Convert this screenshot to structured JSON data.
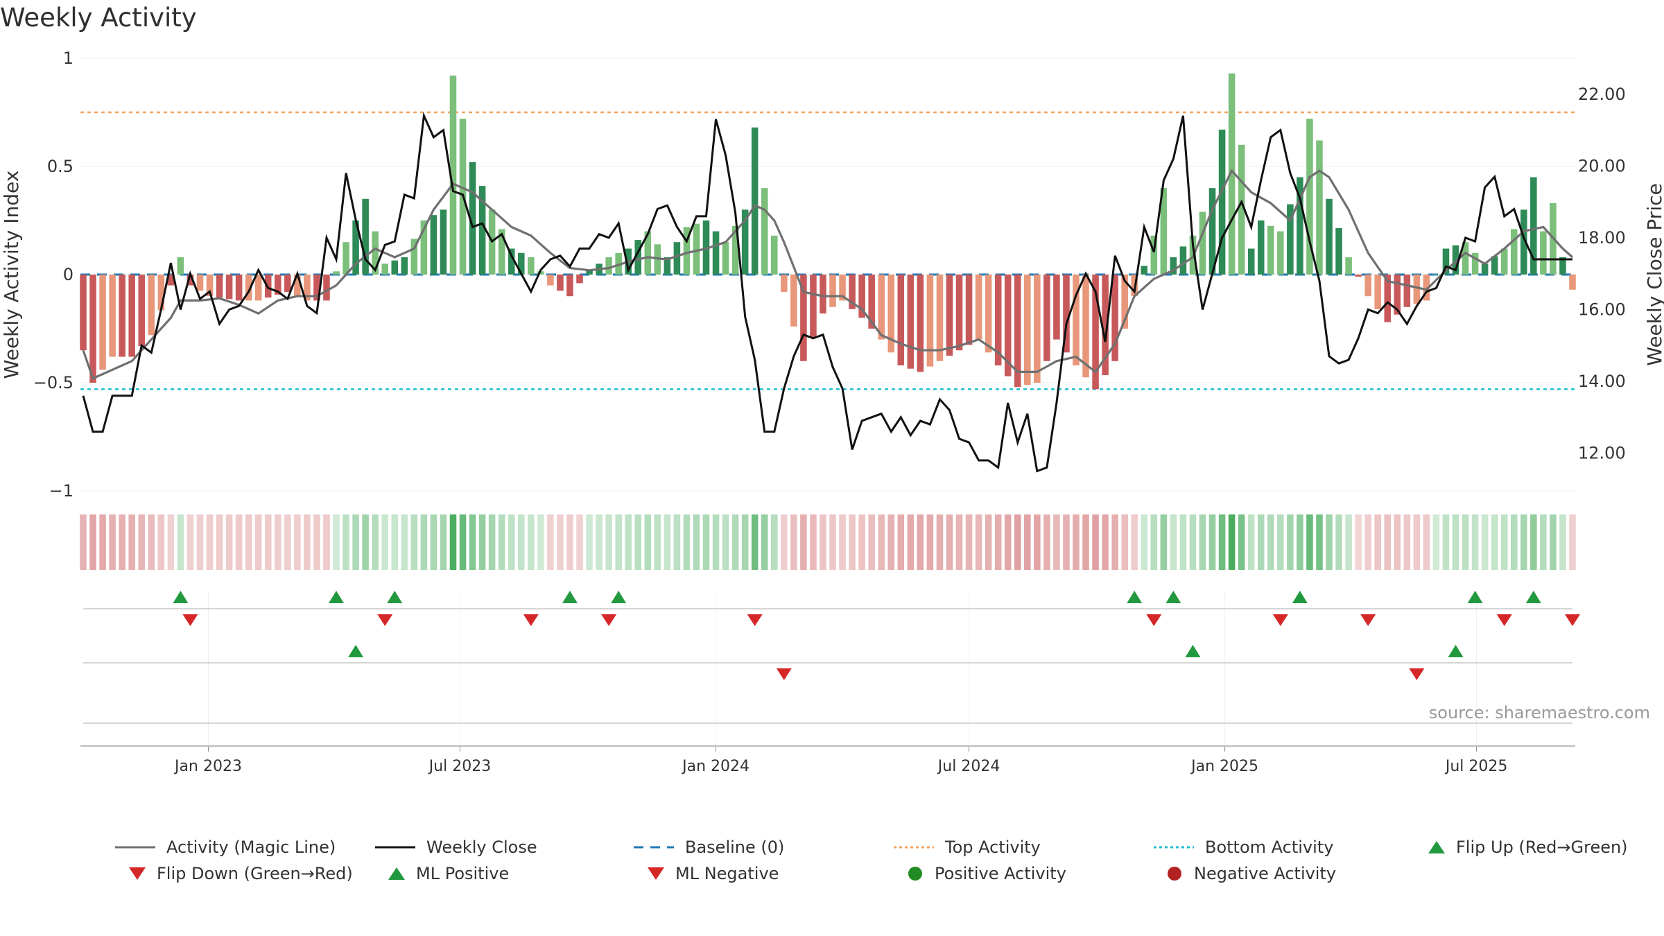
{
  "title": "Weekly Activity",
  "source": "source: sharemaestro.com",
  "legend": {
    "magic_line": "Activity (Magic Line)",
    "weekly_close": "Weekly Close",
    "baseline": "Baseline (0)",
    "top_activity": "Top Activity",
    "bottom_activity": "Bottom Activity",
    "flip_up": "Flip Up (Red→Green)",
    "flip_down": "Flip Down (Green→Red)",
    "ml_positive": "ML Positive",
    "ml_negative": "ML Negative",
    "positive_activity": "Positive Activity",
    "negative_activity": "Negative Activity"
  },
  "colors": {
    "pos_strong": "#2e8b57",
    "pos_light": "#7bbf7b",
    "neg_strong": "#c8595b",
    "neg_light": "#e8977a",
    "magic_line": "#707070",
    "close": "#111111",
    "baseline": "#1f77b4",
    "top": "#f0a35e",
    "bottom": "#17becf",
    "up_marker": "#22993f",
    "down_marker": "#d62728",
    "pos_dot": "#228b22",
    "neg_dot": "#b22222"
  },
  "chart_data": {
    "type": "bar+line",
    "title": "Weekly Activity",
    "ylabel": "Weekly Activity Index",
    "y2label": "Weekly Close Price",
    "ylim": [
      -1,
      1
    ],
    "y2lim": [
      10.95,
      23.0
    ],
    "yticks": [
      1,
      0.5,
      0,
      -0.5,
      -1
    ],
    "ytick_labels": [
      "1",
      "0.5",
      "0",
      "−0.5",
      "−1"
    ],
    "y2ticks": [
      22,
      20,
      18,
      16,
      14,
      12
    ],
    "y2tick_labels": [
      "22.00",
      "20.00",
      "18.00",
      "16.00",
      "14.00",
      "12.00"
    ],
    "x_start_date": "2022-10-03",
    "x_end_date": "2025-09-08",
    "xtick_dates": [
      "2023-01-01",
      "2023-07-01",
      "2024-01-01",
      "2024-07-01",
      "2025-01-01",
      "2025-07-01"
    ],
    "xtick_labels": [
      "Jan 2023",
      "Jul 2023",
      "Jan 2024",
      "Jul 2024",
      "Jan 2025",
      "Jul 2025"
    ],
    "top_activity": 0.75,
    "bottom_activity": -0.53,
    "baseline": 0,
    "activity_anchors": [
      [
        0,
        -0.35
      ],
      [
        1,
        -0.5
      ],
      [
        3,
        -0.38
      ],
      [
        5,
        -0.38
      ],
      [
        7,
        -0.28
      ],
      [
        9,
        -0.05
      ],
      [
        10,
        0.08
      ],
      [
        11,
        -0.05
      ],
      [
        13,
        -0.1
      ],
      [
        16,
        -0.12
      ],
      [
        18,
        -0.12
      ],
      [
        21,
        -0.08
      ],
      [
        23,
        -0.12
      ],
      [
        25,
        -0.12
      ],
      [
        27,
        0.15
      ],
      [
        29,
        0.35
      ],
      [
        31,
        0.05
      ],
      [
        33,
        0.08
      ],
      [
        35,
        0.25
      ],
      [
        37,
        0.3
      ],
      [
        38,
        0.92
      ],
      [
        40,
        0.52
      ],
      [
        42,
        0.3
      ],
      [
        44,
        0.12
      ],
      [
        46,
        0.08
      ],
      [
        48,
        -0.05
      ],
      [
        50,
        -0.1
      ],
      [
        52,
        0.02
      ],
      [
        54,
        0.08
      ],
      [
        56,
        0.12
      ],
      [
        58,
        0.2
      ],
      [
        60,
        0.08
      ],
      [
        62,
        0.22
      ],
      [
        64,
        0.25
      ],
      [
        66,
        0.15
      ],
      [
        68,
        0.3
      ],
      [
        69,
        0.68
      ],
      [
        70,
        0.4
      ],
      [
        71,
        0.18
      ],
      [
        72,
        -0.08
      ],
      [
        74,
        -0.4
      ],
      [
        76,
        -0.18
      ],
      [
        78,
        -0.12
      ],
      [
        80,
        -0.2
      ],
      [
        82,
        -0.3
      ],
      [
        84,
        -0.42
      ],
      [
        86,
        -0.45
      ],
      [
        88,
        -0.4
      ],
      [
        90,
        -0.35
      ],
      [
        92,
        -0.3
      ],
      [
        94,
        -0.42
      ],
      [
        96,
        -0.52
      ],
      [
        98,
        -0.5
      ],
      [
        100,
        -0.3
      ],
      [
        102,
        -0.42
      ],
      [
        104,
        -0.53
      ],
      [
        106,
        -0.4
      ],
      [
        108,
        -0.1
      ],
      [
        110,
        0.18
      ],
      [
        111,
        0.4
      ],
      [
        112,
        0.08
      ],
      [
        114,
        0.18
      ],
      [
        116,
        0.4
      ],
      [
        117,
        0.67
      ],
      [
        118,
        0.93
      ],
      [
        119,
        0.6
      ],
      [
        120,
        0.12
      ],
      [
        121,
        0.25
      ],
      [
        123,
        0.2
      ],
      [
        125,
        0.45
      ],
      [
        126,
        0.72
      ],
      [
        127,
        0.62
      ],
      [
        128,
        0.35
      ],
      [
        130,
        0.08
      ],
      [
        132,
        -0.1
      ],
      [
        134,
        -0.22
      ],
      [
        136,
        -0.15
      ],
      [
        138,
        -0.12
      ],
      [
        140,
        0.12
      ],
      [
        142,
        0.15
      ],
      [
        144,
        0.05
      ],
      [
        146,
        0.12
      ],
      [
        148,
        0.3
      ],
      [
        149,
        0.45
      ],
      [
        150,
        0.2
      ],
      [
        151,
        0.33
      ],
      [
        152,
        0.08
      ],
      [
        153,
        -0.07
      ]
    ],
    "magic_anchors": [
      [
        0,
        -0.35
      ],
      [
        1,
        -0.48
      ],
      [
        3,
        -0.44
      ],
      [
        5,
        -0.4
      ],
      [
        7,
        -0.3
      ],
      [
        9,
        -0.2
      ],
      [
        10,
        -0.12
      ],
      [
        12,
        -0.12
      ],
      [
        14,
        -0.11
      ],
      [
        16,
        -0.14
      ],
      [
        18,
        -0.18
      ],
      [
        20,
        -0.12
      ],
      [
        22,
        -0.1
      ],
      [
        24,
        -0.1
      ],
      [
        26,
        -0.05
      ],
      [
        28,
        0.05
      ],
      [
        30,
        0.12
      ],
      [
        32,
        0.08
      ],
      [
        34,
        0.12
      ],
      [
        36,
        0.3
      ],
      [
        38,
        0.42
      ],
      [
        40,
        0.38
      ],
      [
        42,
        0.3
      ],
      [
        44,
        0.22
      ],
      [
        46,
        0.18
      ],
      [
        48,
        0.1
      ],
      [
        50,
        0.03
      ],
      [
        52,
        0.02
      ],
      [
        54,
        0.03
      ],
      [
        56,
        0.06
      ],
      [
        58,
        0.08
      ],
      [
        60,
        0.07
      ],
      [
        62,
        0.1
      ],
      [
        64,
        0.12
      ],
      [
        66,
        0.15
      ],
      [
        68,
        0.25
      ],
      [
        69,
        0.32
      ],
      [
        70,
        0.3
      ],
      [
        71,
        0.25
      ],
      [
        72,
        0.15
      ],
      [
        74,
        -0.08
      ],
      [
        76,
        -0.1
      ],
      [
        78,
        -0.1
      ],
      [
        80,
        -0.16
      ],
      [
        82,
        -0.28
      ],
      [
        84,
        -0.32
      ],
      [
        86,
        -0.35
      ],
      [
        88,
        -0.35
      ],
      [
        90,
        -0.33
      ],
      [
        92,
        -0.3
      ],
      [
        94,
        -0.36
      ],
      [
        96,
        -0.45
      ],
      [
        98,
        -0.45
      ],
      [
        100,
        -0.4
      ],
      [
        102,
        -0.38
      ],
      [
        104,
        -0.45
      ],
      [
        106,
        -0.32
      ],
      [
        108,
        -0.1
      ],
      [
        110,
        -0.02
      ],
      [
        112,
        0.02
      ],
      [
        114,
        0.08
      ],
      [
        116,
        0.3
      ],
      [
        118,
        0.48
      ],
      [
        120,
        0.38
      ],
      [
        122,
        0.33
      ],
      [
        124,
        0.25
      ],
      [
        126,
        0.45
      ],
      [
        127,
        0.48
      ],
      [
        128,
        0.45
      ],
      [
        130,
        0.3
      ],
      [
        132,
        0.1
      ],
      [
        134,
        -0.03
      ],
      [
        136,
        -0.05
      ],
      [
        138,
        -0.07
      ],
      [
        140,
        0.02
      ],
      [
        142,
        0.1
      ],
      [
        144,
        0.05
      ],
      [
        146,
        0.12
      ],
      [
        148,
        0.2
      ],
      [
        150,
        0.22
      ],
      [
        152,
        0.12
      ],
      [
        153,
        0.08
      ]
    ],
    "close_anchors": [
      [
        0,
        13.6
      ],
      [
        1,
        12.6
      ],
      [
        2,
        12.6
      ],
      [
        3,
        13.6
      ],
      [
        5,
        13.6
      ],
      [
        6,
        15.0
      ],
      [
        7,
        14.8
      ],
      [
        8,
        16.0
      ],
      [
        9,
        17.3
      ],
      [
        10,
        16.0
      ],
      [
        11,
        17.0
      ],
      [
        12,
        16.3
      ],
      [
        13,
        16.5
      ],
      [
        14,
        15.6
      ],
      [
        15,
        16.0
      ],
      [
        16,
        16.1
      ],
      [
        17,
        16.5
      ],
      [
        18,
        17.1
      ],
      [
        19,
        16.6
      ],
      [
        20,
        16.5
      ],
      [
        21,
        16.3
      ],
      [
        22,
        17.0
      ],
      [
        23,
        16.1
      ],
      [
        24,
        15.9
      ],
      [
        25,
        18.0
      ],
      [
        26,
        17.4
      ],
      [
        27,
        19.8
      ],
      [
        28,
        18.5
      ],
      [
        29,
        17.4
      ],
      [
        30,
        17.1
      ],
      [
        31,
        17.8
      ],
      [
        32,
        17.9
      ],
      [
        33,
        19.2
      ],
      [
        34,
        19.1
      ],
      [
        35,
        21.4
      ],
      [
        36,
        20.8
      ],
      [
        37,
        21.0
      ],
      [
        38,
        19.3
      ],
      [
        39,
        19.2
      ],
      [
        40,
        18.3
      ],
      [
        41,
        18.4
      ],
      [
        42,
        17.9
      ],
      [
        43,
        18.1
      ],
      [
        44,
        17.5
      ],
      [
        45,
        17.0
      ],
      [
        46,
        16.5
      ],
      [
        47,
        17.1
      ],
      [
        48,
        17.4
      ],
      [
        49,
        17.5
      ],
      [
        50,
        17.2
      ],
      [
        51,
        17.7
      ],
      [
        52,
        17.7
      ],
      [
        53,
        18.1
      ],
      [
        54,
        18.0
      ],
      [
        55,
        18.4
      ],
      [
        56,
        17.1
      ],
      [
        57,
        17.6
      ],
      [
        58,
        18.1
      ],
      [
        59,
        18.8
      ],
      [
        60,
        18.9
      ],
      [
        61,
        18.3
      ],
      [
        62,
        17.9
      ],
      [
        63,
        18.6
      ],
      [
        64,
        18.6
      ],
      [
        65,
        21.3
      ],
      [
        66,
        20.3
      ],
      [
        67,
        18.7
      ],
      [
        68,
        15.8
      ],
      [
        69,
        14.6
      ],
      [
        70,
        12.6
      ],
      [
        71,
        12.6
      ],
      [
        72,
        13.8
      ],
      [
        73,
        14.7
      ],
      [
        74,
        15.3
      ],
      [
        75,
        15.2
      ],
      [
        76,
        15.3
      ],
      [
        77,
        14.4
      ],
      [
        78,
        13.8
      ],
      [
        79,
        12.1
      ],
      [
        80,
        12.9
      ],
      [
        81,
        13.0
      ],
      [
        82,
        13.1
      ],
      [
        83,
        12.6
      ],
      [
        84,
        13.0
      ],
      [
        85,
        12.5
      ],
      [
        86,
        12.9
      ],
      [
        87,
        12.8
      ],
      [
        88,
        13.5
      ],
      [
        89,
        13.2
      ],
      [
        90,
        12.4
      ],
      [
        91,
        12.3
      ],
      [
        92,
        11.8
      ],
      [
        93,
        11.8
      ],
      [
        94,
        11.6
      ],
      [
        95,
        13.4
      ],
      [
        96,
        12.3
      ],
      [
        97,
        13.1
      ],
      [
        98,
        11.5
      ],
      [
        99,
        11.6
      ],
      [
        100,
        13.4
      ],
      [
        101,
        15.6
      ],
      [
        102,
        16.4
      ],
      [
        103,
        17.0
      ],
      [
        104,
        16.5
      ],
      [
        105,
        15.1
      ],
      [
        106,
        17.5
      ],
      [
        107,
        16.8
      ],
      [
        108,
        16.5
      ],
      [
        109,
        18.3
      ],
      [
        110,
        17.6
      ],
      [
        111,
        19.6
      ],
      [
        112,
        20.2
      ],
      [
        113,
        21.4
      ],
      [
        114,
        17.8
      ],
      [
        115,
        16.0
      ],
      [
        116,
        17.0
      ],
      [
        117,
        18.0
      ],
      [
        118,
        18.5
      ],
      [
        119,
        19.0
      ],
      [
        120,
        18.3
      ],
      [
        121,
        19.6
      ],
      [
        122,
        20.8
      ],
      [
        123,
        21.0
      ],
      [
        124,
        19.8
      ],
      [
        125,
        19.1
      ],
      [
        126,
        17.9
      ],
      [
        127,
        16.8
      ],
      [
        128,
        14.7
      ],
      [
        129,
        14.5
      ],
      [
        130,
        14.6
      ],
      [
        131,
        15.2
      ],
      [
        132,
        16.0
      ],
      [
        133,
        15.9
      ],
      [
        134,
        16.2
      ],
      [
        135,
        16.0
      ],
      [
        136,
        15.6
      ],
      [
        137,
        16.1
      ],
      [
        138,
        16.5
      ],
      [
        139,
        16.6
      ],
      [
        140,
        17.2
      ],
      [
        141,
        17.1
      ],
      [
        142,
        18.0
      ],
      [
        143,
        17.9
      ],
      [
        144,
        19.4
      ],
      [
        145,
        19.7
      ],
      [
        146,
        18.6
      ],
      [
        147,
        18.8
      ],
      [
        148,
        18.0
      ],
      [
        149,
        17.4
      ]
    ],
    "flip_up_weeks": [
      10,
      26,
      32,
      50,
      55,
      108,
      112,
      125,
      143,
      149
    ],
    "flip_down_weeks": [
      11,
      31,
      46,
      54,
      69,
      110,
      123,
      132,
      146,
      153
    ],
    "ml_positive_weeks": [
      28,
      114,
      141
    ],
    "ml_negative_weeks": [
      72,
      137
    ],
    "positive_activity_weeks": [],
    "negative_activity_weeks": []
  }
}
